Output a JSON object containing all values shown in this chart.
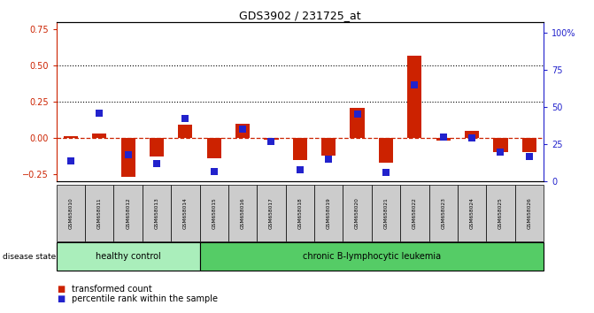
{
  "title": "GDS3902 / 231725_at",
  "samples": [
    "GSM658010",
    "GSM658011",
    "GSM658012",
    "GSM658013",
    "GSM658014",
    "GSM658015",
    "GSM658016",
    "GSM658017",
    "GSM658018",
    "GSM658019",
    "GSM658020",
    "GSM658021",
    "GSM658022",
    "GSM658023",
    "GSM658024",
    "GSM658025",
    "GSM658026"
  ],
  "red_bars": [
    0.01,
    0.03,
    -0.27,
    -0.13,
    0.09,
    -0.14,
    0.1,
    -0.01,
    -0.15,
    -0.12,
    0.21,
    -0.17,
    0.57,
    -0.02,
    0.05,
    -0.1,
    -0.1
  ],
  "blue_pct": [
    14,
    46,
    18,
    12,
    42,
    7,
    35,
    27,
    8,
    15,
    45,
    6,
    65,
    30,
    29,
    20,
    17
  ],
  "healthy_control_count": 5,
  "ylim_left": [
    -0.3,
    0.8
  ],
  "ylim_right": [
    0,
    107
  ],
  "yticks_left": [
    -0.25,
    0.0,
    0.25,
    0.5,
    0.75
  ],
  "yticks_right": [
    0,
    25,
    50,
    75,
    100
  ],
  "ytick_labels_right": [
    "0",
    "25",
    "50",
    "75",
    "100%"
  ],
  "hlines_dotted": [
    0.25,
    0.5
  ],
  "red_color": "#CC2200",
  "blue_color": "#2222CC",
  "bar_width": 0.5,
  "blue_square_size": 30,
  "healthy_label": "healthy control",
  "leukemia_label": "chronic B-lymphocytic leukemia",
  "disease_state_label": "disease state",
  "legend_red": "transformed count",
  "legend_blue": "percentile rank within the sample"
}
